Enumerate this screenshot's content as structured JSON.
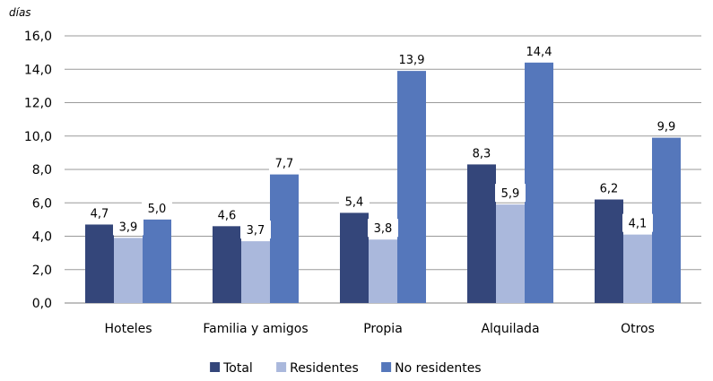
{
  "chart_data": {
    "type": "bar",
    "ylabel": "días",
    "categories": [
      "Hoteles",
      "Familia y amigos",
      "Propia",
      "Alquilada",
      "Otros"
    ],
    "series": [
      {
        "name": "Total",
        "values": [
          4.7,
          4.6,
          5.4,
          8.3,
          6.2
        ],
        "labels": [
          "4,7",
          "4,6",
          "5,4",
          "8,3",
          "6,2"
        ],
        "color": "#34467a"
      },
      {
        "name": "Residentes",
        "values": [
          3.9,
          3.7,
          3.8,
          5.9,
          4.1
        ],
        "labels": [
          "3,9",
          "3,7",
          "3,8",
          "5,9",
          "4,1"
        ],
        "color": "#aab8dc"
      },
      {
        "name": "No residentes",
        "values": [
          5.0,
          7.7,
          13.9,
          14.4,
          9.9
        ],
        "labels": [
          "5,0",
          "7,7",
          "13,9",
          "14,4",
          "9,9"
        ],
        "color": "#5577bb"
      }
    ],
    "ylim": [
      0,
      16
    ],
    "yticks": [
      0,
      2,
      4,
      6,
      8,
      10,
      12,
      14,
      16
    ],
    "ytick_labels": [
      "0,0",
      "2,0",
      "4,0",
      "6,0",
      "8,0",
      "10,0",
      "12,0",
      "14,0",
      "16,0"
    ],
    "grid": true,
    "legend_position": "bottom"
  }
}
